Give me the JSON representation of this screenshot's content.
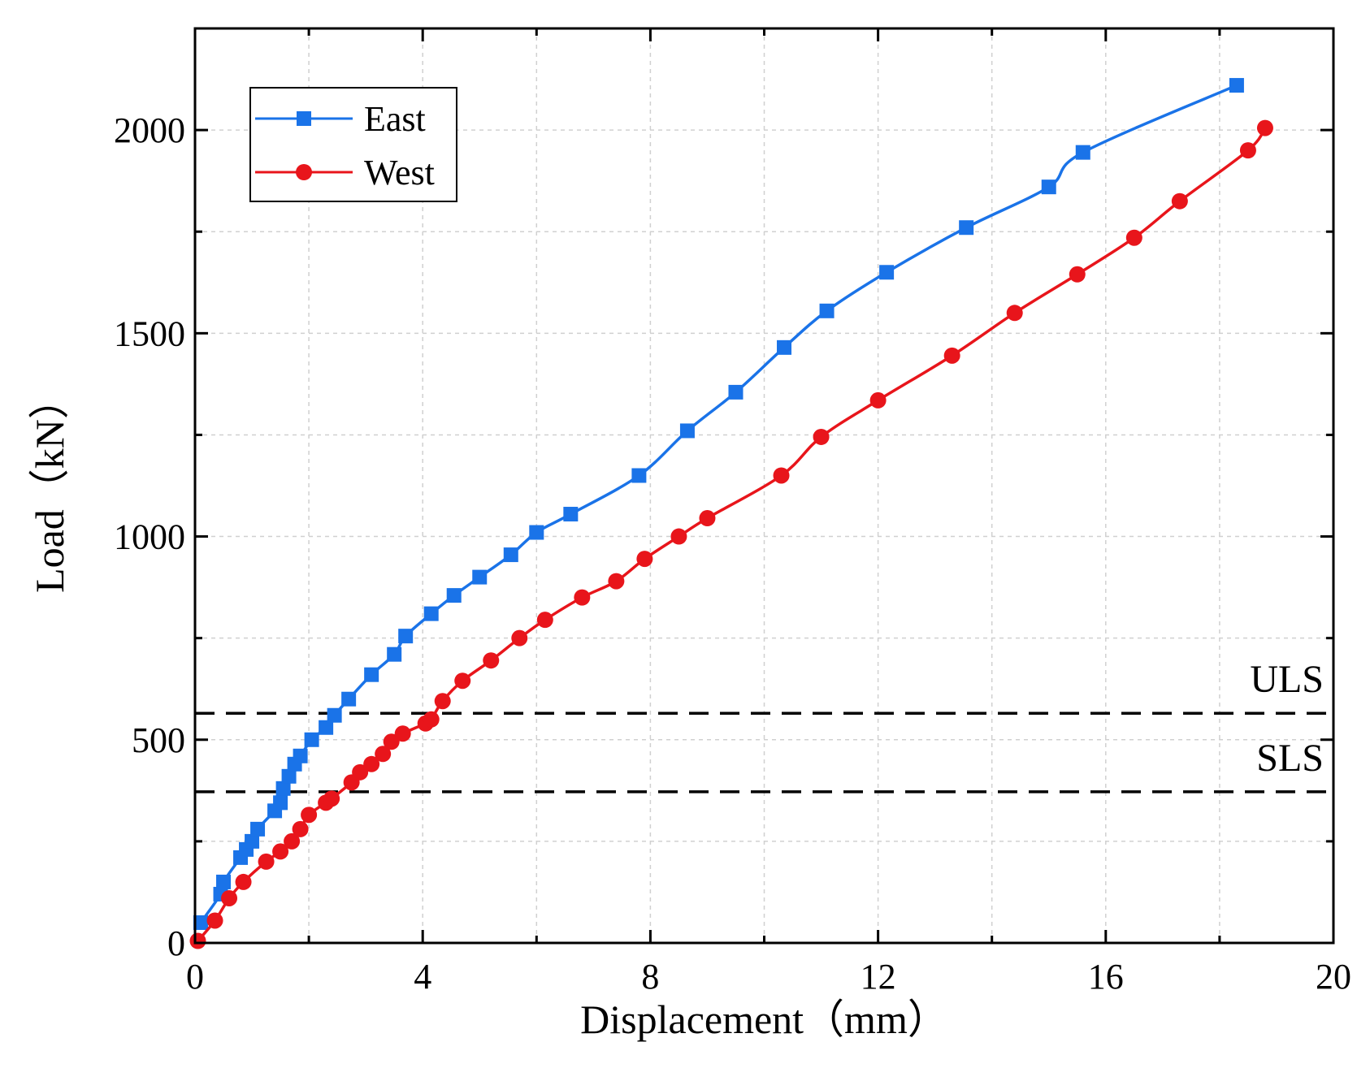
{
  "chart_data": {
    "type": "line",
    "title": "",
    "xlabel": "Displacement（mm）",
    "ylabel": "Load（kN）",
    "xlim": [
      0,
      20
    ],
    "ylim": [
      0,
      2250
    ],
    "x_ticks": [
      0,
      4,
      8,
      12,
      16,
      20
    ],
    "y_ticks": [
      0,
      500,
      1000,
      1500,
      2000
    ],
    "x_tick_labels": [
      "0",
      "4",
      "8",
      "12",
      "16",
      "20"
    ],
    "y_tick_labels": [
      "0",
      "500",
      "1000",
      "1500",
      "2000"
    ],
    "grid": true,
    "legend_position": "top-left",
    "series": [
      {
        "name": "East",
        "color": "#1a73e8",
        "marker": "square",
        "x": [
          0.1,
          0.45,
          0.5,
          0.8,
          0.9,
          1.0,
          1.1,
          1.4,
          1.5,
          1.55,
          1.65,
          1.75,
          1.85,
          2.05,
          2.3,
          2.45,
          2.7,
          3.1,
          3.5,
          3.7,
          4.15,
          4.55,
          5.0,
          5.55,
          6.0,
          6.6,
          7.8,
          8.65,
          9.5,
          10.35,
          11.1,
          12.15,
          13.55,
          15.0,
          15.6,
          18.3
        ],
        "y": [
          50,
          120,
          150,
          210,
          230,
          250,
          280,
          325,
          345,
          380,
          410,
          440,
          460,
          500,
          530,
          560,
          600,
          660,
          710,
          755,
          810,
          855,
          900,
          955,
          1010,
          1055,
          1150,
          1260,
          1355,
          1465,
          1555,
          1650,
          1760,
          1860,
          1945,
          2110
        ]
      },
      {
        "name": "West",
        "color": "#e8151b",
        "marker": "circle",
        "x": [
          0.05,
          0.35,
          0.6,
          0.85,
          1.25,
          1.5,
          1.7,
          1.85,
          2.0,
          2.3,
          2.4,
          2.75,
          2.9,
          3.1,
          3.3,
          3.45,
          3.65,
          4.05,
          4.15,
          4.35,
          4.7,
          5.2,
          5.7,
          6.15,
          6.8,
          7.4,
          7.9,
          8.5,
          9.0,
          10.3,
          11.0,
          12.0,
          13.3,
          14.4,
          15.5,
          16.5,
          17.3,
          18.5,
          18.8
        ],
        "y": [
          5,
          55,
          110,
          150,
          200,
          225,
          250,
          280,
          315,
          345,
          355,
          395,
          420,
          440,
          465,
          495,
          515,
          540,
          550,
          595,
          645,
          695,
          750,
          795,
          850,
          890,
          945,
          1000,
          1045,
          1150,
          1245,
          1335,
          1445,
          1550,
          1645,
          1735,
          1825,
          1950,
          2005
        ]
      }
    ],
    "reference_lines": [
      {
        "label": "ULS",
        "y": 565
      },
      {
        "label": "SLS",
        "y": 372
      }
    ]
  }
}
